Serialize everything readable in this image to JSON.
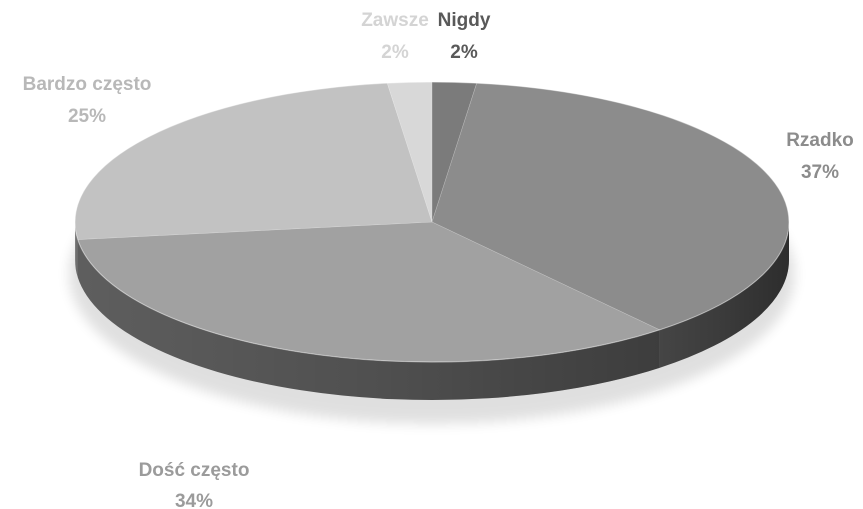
{
  "chart_data": {
    "type": "pie",
    "title": "",
    "style": "3d",
    "start_angle_deg": 0,
    "direction": "clockwise",
    "slices": [
      {
        "label": "Nigdy",
        "value": 2,
        "value_label": "2%",
        "color": "#7b7b7b",
        "side_color": "#4c4c4c",
        "label_color": "#595959"
      },
      {
        "label": "Rzadko",
        "value": 37,
        "value_label": "37%",
        "color": "#8c8c8c",
        "side_color": "#454545",
        "label_color": "#8c8c8c"
      },
      {
        "label": "Dość często",
        "value": 34,
        "value_label": "34%",
        "color": "#a1a1a1",
        "side_color": "#5e5e5e",
        "label_color": "#9b9b9b"
      },
      {
        "label": "Bardzo często",
        "value": 25,
        "value_label": "25%",
        "color": "#c2c2c2",
        "side_color": "#858585",
        "label_color": "#b8b8b8"
      },
      {
        "label": "Zawsze",
        "value": 2,
        "value_label": "2%",
        "color": "#d8d8d8",
        "side_color": "#a8a8a8",
        "label_color": "#d4d4d4"
      }
    ]
  }
}
